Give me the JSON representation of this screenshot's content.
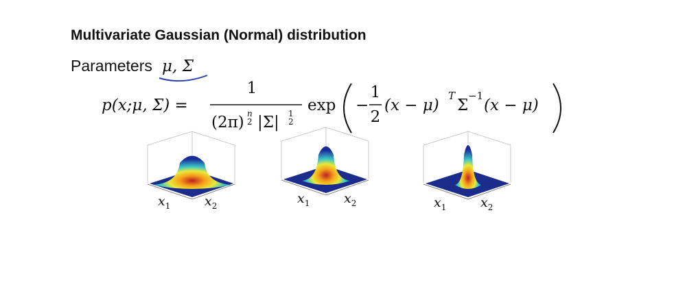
{
  "header": {
    "title": "Multivariate Gaussian (Normal) distribution"
  },
  "parameters": {
    "label": "Parameters",
    "symbols": "μ, Σ"
  },
  "formula": {
    "lhs": "p(x;μ, Σ) =",
    "numerator": "1",
    "den_base1": "(2π)",
    "den_exp1_num": "n",
    "den_exp1_den": "2",
    "den_base2": "|Σ|",
    "den_exp2_num": "1",
    "den_exp2_den": "2",
    "exp": "exp",
    "minus": "−",
    "half_num": "1",
    "half_den": "2",
    "term1": "(x − μ)",
    "sup_t": "T",
    "sigma": "Σ",
    "sup_inv": "−1",
    "term2": "(x − μ)"
  },
  "plots": [
    {
      "x_label": "x",
      "x_sub": "1",
      "y_label": "x",
      "y_sub": "2"
    },
    {
      "x_label": "x",
      "x_sub": "1",
      "y_label": "x",
      "y_sub": "2"
    },
    {
      "x_label": "x",
      "x_sub": "1",
      "y_label": "x",
      "y_sub": "2"
    }
  ]
}
